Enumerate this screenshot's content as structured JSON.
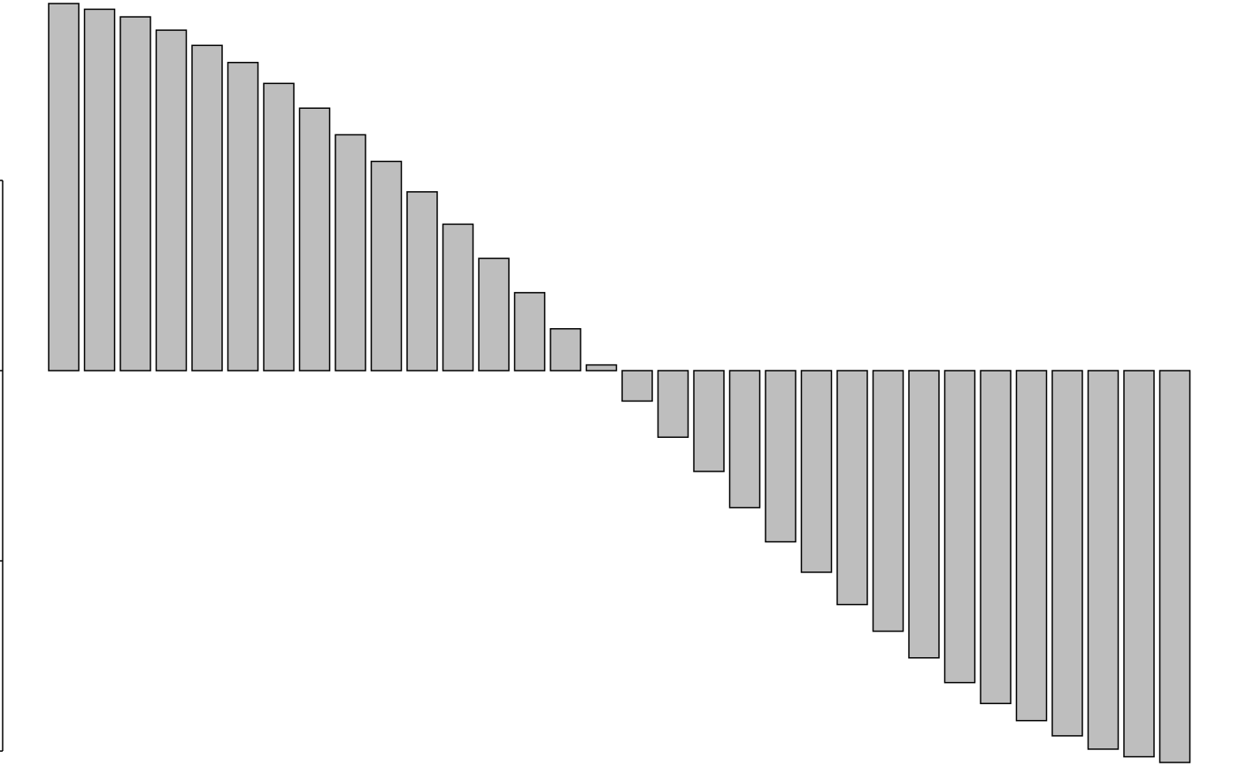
{
  "chart_data": {
    "type": "bar",
    "values": [
      1.93,
      1.9,
      1.86,
      1.79,
      1.71,
      1.62,
      1.51,
      1.38,
      1.24,
      1.1,
      0.94,
      0.77,
      0.59,
      0.41,
      0.22,
      0.03,
      -0.16,
      -0.35,
      -0.53,
      -0.72,
      -0.9,
      -1.06,
      -1.23,
      -1.37,
      -1.51,
      -1.64,
      -1.75,
      -1.84,
      -1.92,
      -1.99,
      -2.03,
      -2.06
    ],
    "color": "#bebebe",
    "ylim": [
      -2.06,
      1.93
    ],
    "yticks": [
      -2,
      -1,
      0,
      1
    ]
  }
}
